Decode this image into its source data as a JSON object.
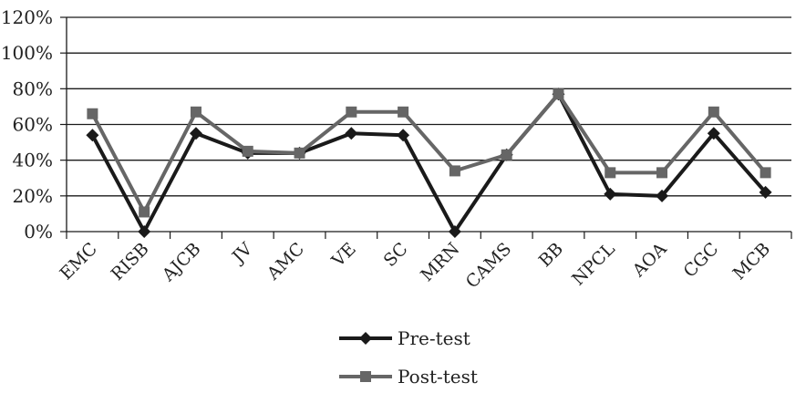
{
  "chart_data": {
    "type": "line",
    "title": "",
    "xlabel": "",
    "ylabel": "",
    "y_ticks": [
      "0%",
      "20%",
      "40%",
      "60%",
      "80%",
      "100%",
      "120%"
    ],
    "ylim": [
      0,
      120
    ],
    "grid": true,
    "legend_position": "bottom",
    "categories": [
      "EMC",
      "RISB",
      "AJCB",
      "JV",
      "AMC",
      "VE",
      "SC",
      "MRN",
      "CAMS",
      "BB",
      "NPCL",
      "AOA",
      "CGC",
      "MCB"
    ],
    "series": [
      {
        "name": "Pre-test",
        "color": "#1a1a1a",
        "marker": "diamond",
        "values": [
          54,
          0,
          55,
          44,
          44,
          55,
          54,
          0,
          43,
          77,
          21,
          20,
          55,
          22
        ]
      },
      {
        "name": "Post-test",
        "color": "#666666",
        "marker": "square",
        "values": [
          66,
          11,
          67,
          45,
          44,
          67,
          67,
          34,
          43,
          77,
          33,
          33,
          67,
          33
        ]
      }
    ]
  }
}
